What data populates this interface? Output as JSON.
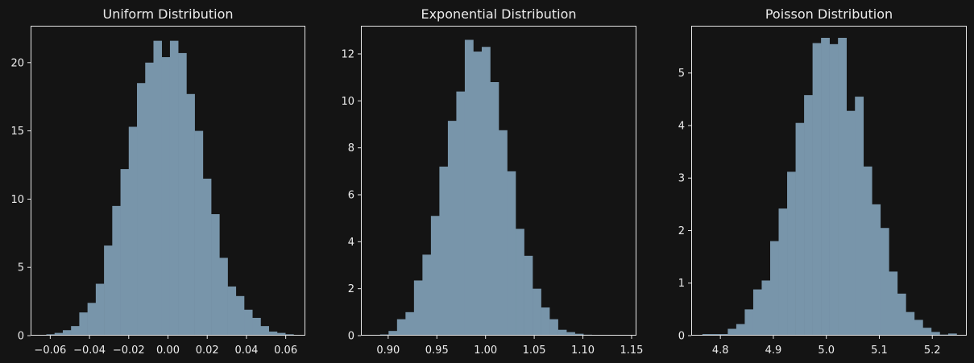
{
  "theme": {
    "background": "#141414",
    "axes_edge": "#e6e6e6",
    "bar_color": "#7895aa",
    "text_color": "#ececec"
  },
  "chart_data": [
    {
      "type": "bar",
      "title": "Uniform Distribution",
      "xlabel": "",
      "ylabel": "",
      "grid": false,
      "xlim": [
        -0.07,
        0.07
      ],
      "ylim": [
        0,
        22.7
      ],
      "xticks": [
        -0.06,
        -0.04,
        -0.02,
        0.0,
        0.02,
        0.04,
        0.06
      ],
      "xtick_labels": [
        "−0.06",
        "−0.04",
        "−0.02",
        "0.00",
        "0.02",
        "0.04",
        "0.06"
      ],
      "yticks": [
        0,
        5,
        10,
        15,
        20
      ],
      "ytick_labels": [
        "0",
        "5",
        "10",
        "15",
        "20"
      ],
      "bins": [
        {
          "x0": -0.062,
          "x1": -0.0578,
          "value": 0.1
        },
        {
          "x0": -0.0578,
          "x1": -0.0536,
          "value": 0.2
        },
        {
          "x0": -0.0536,
          "x1": -0.0494,
          "value": 0.4
        },
        {
          "x0": -0.0494,
          "x1": -0.0452,
          "value": 0.7
        },
        {
          "x0": -0.0452,
          "x1": -0.041,
          "value": 1.7
        },
        {
          "x0": -0.041,
          "x1": -0.0368,
          "value": 2.4
        },
        {
          "x0": -0.0368,
          "x1": -0.0326,
          "value": 3.8
        },
        {
          "x0": -0.0326,
          "x1": -0.0284,
          "value": 6.6
        },
        {
          "x0": -0.0284,
          "x1": -0.0242,
          "value": 9.5
        },
        {
          "x0": -0.0242,
          "x1": -0.02,
          "value": 12.2
        },
        {
          "x0": -0.02,
          "x1": -0.0158,
          "value": 15.3
        },
        {
          "x0": -0.0158,
          "x1": -0.0116,
          "value": 18.5
        },
        {
          "x0": -0.0116,
          "x1": -0.0074,
          "value": 20.0
        },
        {
          "x0": -0.0074,
          "x1": -0.0032,
          "value": 21.6
        },
        {
          "x0": -0.0032,
          "x1": 0.001,
          "value": 20.4
        },
        {
          "x0": 0.001,
          "x1": 0.0052,
          "value": 21.6
        },
        {
          "x0": 0.0052,
          "x1": 0.0094,
          "value": 20.7
        },
        {
          "x0": 0.0094,
          "x1": 0.0136,
          "value": 17.7
        },
        {
          "x0": 0.0136,
          "x1": 0.0178,
          "value": 15.0
        },
        {
          "x0": 0.0178,
          "x1": 0.022,
          "value": 11.5
        },
        {
          "x0": 0.022,
          "x1": 0.0262,
          "value": 8.9
        },
        {
          "x0": 0.0262,
          "x1": 0.0304,
          "value": 5.7
        },
        {
          "x0": 0.0304,
          "x1": 0.0346,
          "value": 3.6
        },
        {
          "x0": 0.0346,
          "x1": 0.0388,
          "value": 2.9
        },
        {
          "x0": 0.0388,
          "x1": 0.043,
          "value": 1.9
        },
        {
          "x0": 0.043,
          "x1": 0.0472,
          "value": 1.3
        },
        {
          "x0": 0.0472,
          "x1": 0.0514,
          "value": 0.7
        },
        {
          "x0": 0.0514,
          "x1": 0.0556,
          "value": 0.3
        },
        {
          "x0": 0.0556,
          "x1": 0.0598,
          "value": 0.2
        },
        {
          "x0": 0.0598,
          "x1": 0.064,
          "value": 0.1
        }
      ]
    },
    {
      "type": "bar",
      "title": "Exponential Distribution",
      "xlabel": "",
      "ylabel": "",
      "grid": false,
      "xlim": [
        0.872,
        1.155
      ],
      "ylim": [
        0,
        13.2
      ],
      "xticks": [
        0.9,
        0.95,
        1.0,
        1.05,
        1.1,
        1.15
      ],
      "xtick_labels": [
        "0.90",
        "0.95",
        "1.00",
        "1.05",
        "1.10",
        "1.15"
      ],
      "yticks": [
        0,
        2,
        4,
        6,
        8,
        10,
        12
      ],
      "ytick_labels": [
        "0",
        "2",
        "4",
        "6",
        "8",
        "10",
        "12"
      ],
      "bins": [
        {
          "x0": 0.883,
          "x1": 0.8917,
          "value": 0.01
        },
        {
          "x0": 0.8917,
          "x1": 0.9004,
          "value": 0.05
        },
        {
          "x0": 0.9004,
          "x1": 0.9091,
          "value": 0.2
        },
        {
          "x0": 0.9091,
          "x1": 0.9178,
          "value": 0.7
        },
        {
          "x0": 0.9178,
          "x1": 0.9265,
          "value": 1.0
        },
        {
          "x0": 0.9265,
          "x1": 0.9352,
          "value": 2.35
        },
        {
          "x0": 0.9352,
          "x1": 0.9439,
          "value": 3.45
        },
        {
          "x0": 0.9439,
          "x1": 0.9526,
          "value": 5.1
        },
        {
          "x0": 0.9526,
          "x1": 0.9613,
          "value": 7.2
        },
        {
          "x0": 0.9613,
          "x1": 0.97,
          "value": 9.15
        },
        {
          "x0": 0.97,
          "x1": 0.9787,
          "value": 10.4
        },
        {
          "x0": 0.9787,
          "x1": 0.9874,
          "value": 12.6
        },
        {
          "x0": 0.9874,
          "x1": 0.9961,
          "value": 12.1
        },
        {
          "x0": 0.9961,
          "x1": 1.0048,
          "value": 12.3
        },
        {
          "x0": 1.0048,
          "x1": 1.0135,
          "value": 10.8
        },
        {
          "x0": 1.0135,
          "x1": 1.0222,
          "value": 8.75
        },
        {
          "x0": 1.0222,
          "x1": 1.0309,
          "value": 7.0
        },
        {
          "x0": 1.0309,
          "x1": 1.0396,
          "value": 4.55
        },
        {
          "x0": 1.0396,
          "x1": 1.0483,
          "value": 3.4
        },
        {
          "x0": 1.0483,
          "x1": 1.057,
          "value": 2.0
        },
        {
          "x0": 1.057,
          "x1": 1.0657,
          "value": 1.2
        },
        {
          "x0": 1.0657,
          "x1": 1.0744,
          "value": 0.7
        },
        {
          "x0": 1.0744,
          "x1": 1.0831,
          "value": 0.25
        },
        {
          "x0": 1.0831,
          "x1": 1.0918,
          "value": 0.15
        },
        {
          "x0": 1.0918,
          "x1": 1.1005,
          "value": 0.08
        },
        {
          "x0": 1.1005,
          "x1": 1.1092,
          "value": 0.04
        }
      ]
    },
    {
      "type": "bar",
      "title": "Poisson Distribution",
      "xlabel": "",
      "ylabel": "",
      "grid": false,
      "xlim": [
        4.745,
        5.265
      ],
      "ylim": [
        0,
        5.9
      ],
      "xticks": [
        4.8,
        4.9,
        5.0,
        5.1,
        5.2
      ],
      "xtick_labels": [
        "4.8",
        "4.9",
        "5.0",
        "5.1",
        "5.2"
      ],
      "yticks": [
        0,
        1,
        2,
        3,
        4,
        5
      ],
      "ytick_labels": [
        "0",
        "1",
        "2",
        "3",
        "4",
        "5"
      ],
      "bins": [
        {
          "x0": 4.766,
          "x1": 4.782,
          "value": 0.03
        },
        {
          "x0": 4.782,
          "x1": 4.798,
          "value": 0.03
        },
        {
          "x0": 4.798,
          "x1": 4.814,
          "value": 0.03
        },
        {
          "x0": 4.814,
          "x1": 4.83,
          "value": 0.13
        },
        {
          "x0": 4.83,
          "x1": 4.846,
          "value": 0.22
        },
        {
          "x0": 4.846,
          "x1": 4.862,
          "value": 0.5
        },
        {
          "x0": 4.862,
          "x1": 4.878,
          "value": 0.88
        },
        {
          "x0": 4.878,
          "x1": 4.894,
          "value": 1.05
        },
        {
          "x0": 4.894,
          "x1": 4.91,
          "value": 1.8
        },
        {
          "x0": 4.91,
          "x1": 4.926,
          "value": 2.42
        },
        {
          "x0": 4.926,
          "x1": 4.942,
          "value": 3.12
        },
        {
          "x0": 4.942,
          "x1": 4.958,
          "value": 4.05
        },
        {
          "x0": 4.958,
          "x1": 4.974,
          "value": 4.58
        },
        {
          "x0": 4.974,
          "x1": 4.99,
          "value": 5.57
        },
        {
          "x0": 4.99,
          "x1": 5.006,
          "value": 5.67
        },
        {
          "x0": 5.006,
          "x1": 5.022,
          "value": 5.55
        },
        {
          "x0": 5.022,
          "x1": 5.038,
          "value": 5.67
        },
        {
          "x0": 5.038,
          "x1": 5.054,
          "value": 4.28
        },
        {
          "x0": 5.054,
          "x1": 5.07,
          "value": 4.55
        },
        {
          "x0": 5.07,
          "x1": 5.086,
          "value": 3.22
        },
        {
          "x0": 5.086,
          "x1": 5.102,
          "value": 2.5
        },
        {
          "x0": 5.102,
          "x1": 5.118,
          "value": 2.05
        },
        {
          "x0": 5.118,
          "x1": 5.134,
          "value": 1.22
        },
        {
          "x0": 5.134,
          "x1": 5.15,
          "value": 0.8
        },
        {
          "x0": 5.15,
          "x1": 5.166,
          "value": 0.45
        },
        {
          "x0": 5.166,
          "x1": 5.182,
          "value": 0.3
        },
        {
          "x0": 5.182,
          "x1": 5.198,
          "value": 0.15
        },
        {
          "x0": 5.198,
          "x1": 5.214,
          "value": 0.07
        },
        {
          "x0": 5.214,
          "x1": 5.23,
          "value": 0.02
        },
        {
          "x0": 5.23,
          "x1": 5.246,
          "value": 0.04
        }
      ]
    }
  ]
}
